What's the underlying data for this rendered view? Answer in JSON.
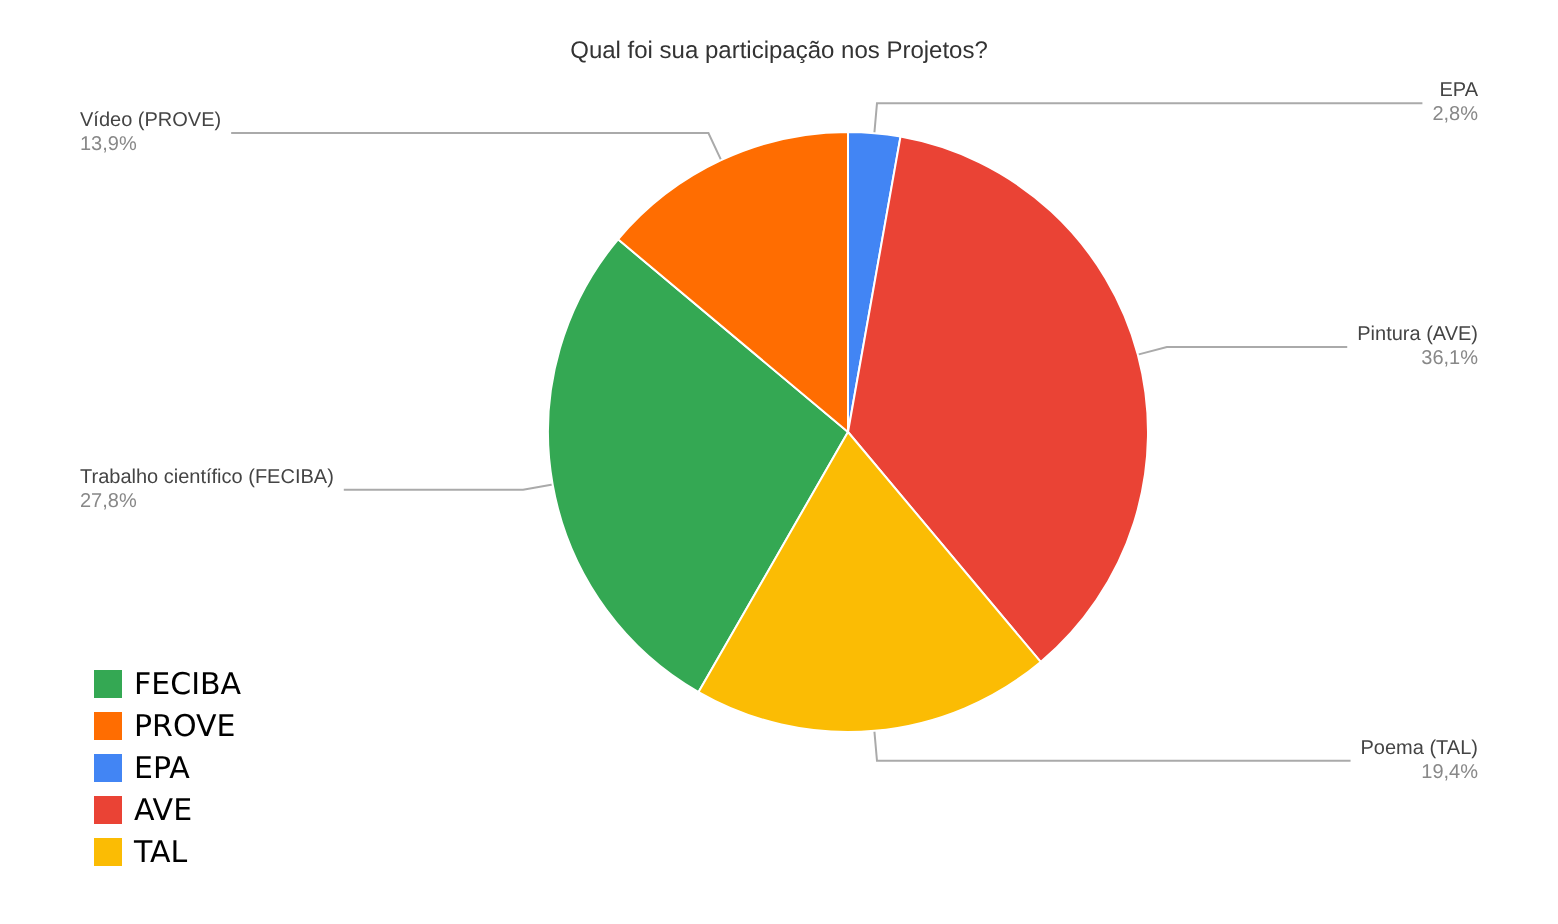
{
  "chart_data": {
    "type": "pie",
    "title": "Qual foi sua participação nos Projetos?",
    "categories": [
      "FECIBA",
      "PROVE",
      "EPA",
      "AVE",
      "TAL"
    ],
    "values": [
      27.8,
      13.9,
      2.8,
      36.1,
      19.4
    ],
    "colors": [
      "#34a853",
      "#ff6d01",
      "#4285f4",
      "#ea4335",
      "#fbbc04"
    ],
    "value_labels": [
      "Trabalho científico (FECIBA)\n27,8%",
      "Vídeo (PROVE)\n13,9%",
      "EPA\n2,8%",
      "Pintura (AVE)\n36,1%",
      "Poema (TAL)\n19,4%"
    ],
    "legend": "bottom left"
  }
}
